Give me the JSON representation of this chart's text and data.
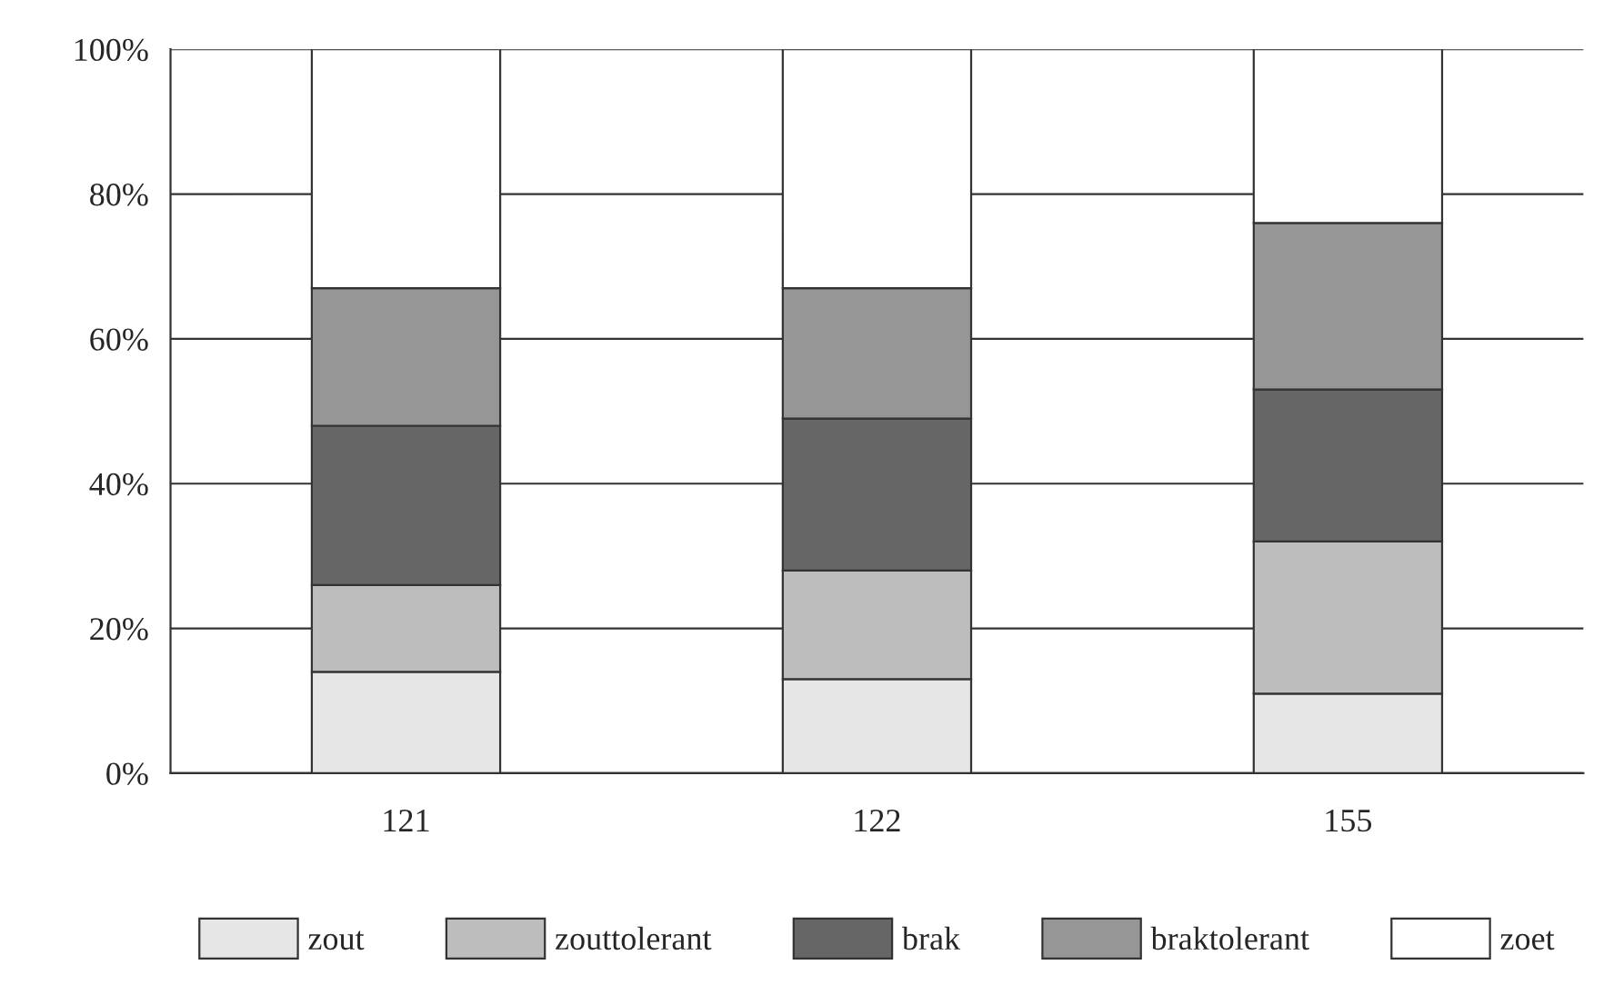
{
  "chart_data": {
    "type": "bar",
    "stacked": true,
    "categories": [
      "121",
      "122",
      "155"
    ],
    "series": [
      {
        "name": "zout",
        "color": "#e6e6e6",
        "values": [
          14,
          13,
          11
        ]
      },
      {
        "name": "zouttolerant",
        "color": "#bdbdbd",
        "values": [
          12,
          15,
          21
        ]
      },
      {
        "name": "brak",
        "color": "#666666",
        "values": [
          22,
          21,
          21
        ]
      },
      {
        "name": "braktolerant",
        "color": "#969696",
        "values": [
          19,
          18,
          23
        ]
      },
      {
        "name": "zoet",
        "color": "#ffffff",
        "values": [
          33,
          33,
          24
        ]
      }
    ],
    "ylim": [
      0,
      100
    ],
    "yticks": [
      {
        "value": 0,
        "label": "0%"
      },
      {
        "value": 20,
        "label": "20%"
      },
      {
        "value": 40,
        "label": "40%"
      },
      {
        "value": 60,
        "label": "60%"
      },
      {
        "value": 80,
        "label": "80%"
      },
      {
        "value": 100,
        "label": "100%"
      }
    ],
    "grid": "y",
    "legend": "bottom"
  }
}
